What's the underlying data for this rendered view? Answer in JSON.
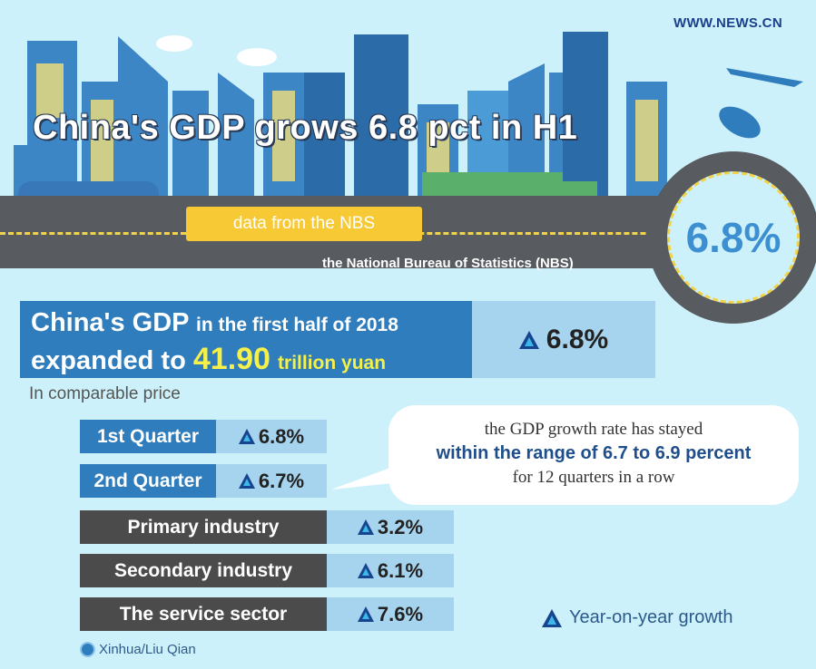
{
  "watermark": "WWW.NEWS.CN",
  "title": "China's GDP grows 6.8 pct in H1",
  "truck_label": "data from the NBS",
  "nbs_label": "the National Bureau of Statistics (NBS)",
  "circle_value": "6.8%",
  "headline": {
    "part1": "China's GDP",
    "part2": "in the first half of 2018",
    "part3": "expanded to",
    "amount": "41.90",
    "unit": "trillion yuan",
    "growth": "6.8%"
  },
  "note": "In comparable price",
  "quarters": [
    {
      "label": "1st Quarter",
      "value": "6.8%"
    },
    {
      "label": "2nd Quarter",
      "value": "6.7%"
    }
  ],
  "bubble": {
    "line1": "the GDP growth rate has stayed",
    "line2": "within the range of 6.7 to 6.9 percent",
    "line3": "for 12 quarters in a row"
  },
  "industries": [
    {
      "label": "Primary industry",
      "value": "3.2%"
    },
    {
      "label": "Secondary industry",
      "value": "6.1%"
    },
    {
      "label": "The service sector",
      "value": "7.6%"
    }
  ],
  "legend": "Year-on-year growth",
  "credit": "Xinhua/Liu Qian",
  "colors": {
    "background": "#cdf1fb",
    "dark_blue": "#2f7dbd",
    "light_blue": "#a6d3ee",
    "dark_gray": "#4b4b4b",
    "highlight": "#f5f04a",
    "triangle": "#17448f"
  }
}
